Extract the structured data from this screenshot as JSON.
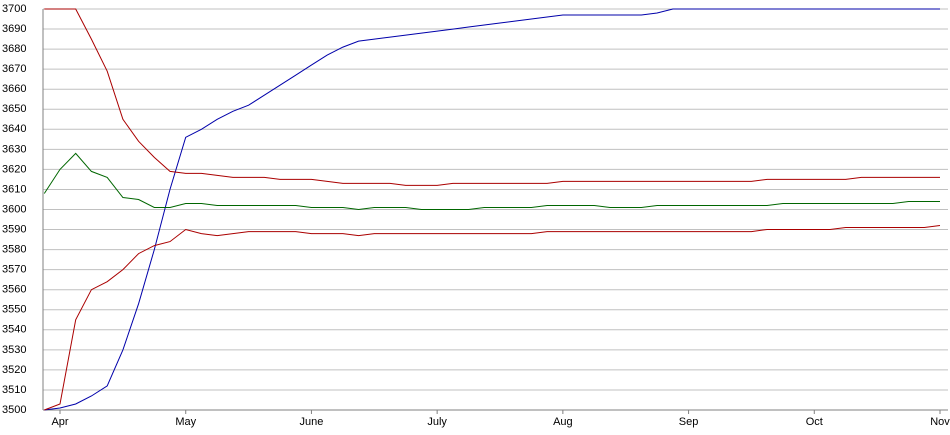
{
  "chart_data": {
    "type": "line",
    "categories": [
      null,
      "Apr",
      null,
      null,
      null,
      null,
      null,
      null,
      null,
      "May",
      null,
      null,
      null,
      null,
      null,
      null,
      null,
      "June",
      null,
      null,
      null,
      null,
      null,
      null,
      null,
      "July",
      null,
      null,
      null,
      null,
      null,
      null,
      null,
      "Aug",
      null,
      null,
      null,
      null,
      null,
      null,
      null,
      "Sep",
      null,
      null,
      null,
      null,
      null,
      null,
      null,
      "Oct",
      null,
      null,
      null,
      null,
      null,
      null,
      null,
      "Nov"
    ],
    "series": [
      {
        "color": "#0000aa",
        "values": [
          3500,
          3501,
          3503,
          3507,
          3512,
          3530,
          3553,
          3580,
          3610,
          3636,
          3640,
          3645,
          3649,
          3652,
          3657,
          3662,
          3667,
          3672,
          3677,
          3681,
          3684,
          3685,
          3686,
          3687,
          3688,
          3689,
          3690,
          3691,
          3692,
          3693,
          3694,
          3695,
          3696,
          3697,
          3697,
          3697,
          3697,
          3697,
          3697,
          3698,
          3700,
          3700,
          3700,
          3700,
          3700,
          3700,
          3700,
          3700,
          3700,
          3700,
          3700,
          3700,
          3700,
          3700,
          3700,
          3700,
          3700,
          3700
        ]
      },
      {
        "color": "#aa0000",
        "values": [
          3700,
          3700,
          3700,
          3685,
          3669,
          3645,
          3634,
          3626,
          3619,
          3618,
          3618,
          3617,
          3616,
          3616,
          3616,
          3615,
          3615,
          3615,
          3614,
          3613,
          3613,
          3613,
          3613,
          3612,
          3612,
          3612,
          3613,
          3613,
          3613,
          3613,
          3613,
          3613,
          3613,
          3614,
          3614,
          3614,
          3614,
          3614,
          3614,
          3614,
          3614,
          3614,
          3614,
          3614,
          3614,
          3614,
          3615,
          3615,
          3615,
          3615,
          3615,
          3615,
          3616,
          3616,
          3616,
          3616,
          3616,
          3616
        ]
      },
      {
        "color": "#006600",
        "values": [
          3608,
          3620,
          3628,
          3619,
          3616,
          3606,
          3605,
          3601,
          3601,
          3603,
          3603,
          3602,
          3602,
          3602,
          3602,
          3602,
          3602,
          3601,
          3601,
          3601,
          3600,
          3601,
          3601,
          3601,
          3600,
          3600,
          3600,
          3600,
          3601,
          3601,
          3601,
          3601,
          3602,
          3602,
          3602,
          3602,
          3601,
          3601,
          3601,
          3602,
          3602,
          3602,
          3602,
          3602,
          3602,
          3602,
          3602,
          3603,
          3603,
          3603,
          3603,
          3603,
          3603,
          3603,
          3603,
          3604,
          3604,
          3604
        ]
      },
      {
        "color": "#aa0000",
        "values": [
          3500,
          3503,
          3545,
          3560,
          3564,
          3570,
          3578,
          3582,
          3584,
          3590,
          3588,
          3587,
          3588,
          3589,
          3589,
          3589,
          3589,
          3588,
          3588,
          3588,
          3587,
          3588,
          3588,
          3588,
          3588,
          3588,
          3588,
          3588,
          3588,
          3588,
          3588,
          3588,
          3589,
          3589,
          3589,
          3589,
          3589,
          3589,
          3589,
          3589,
          3589,
          3589,
          3589,
          3589,
          3589,
          3589,
          3590,
          3590,
          3590,
          3590,
          3590,
          3591,
          3591,
          3591,
          3591,
          3591,
          3591,
          3592
        ]
      }
    ],
    "ylim": [
      3500,
      3700
    ],
    "yticks": [
      3500,
      3510,
      3520,
      3530,
      3540,
      3550,
      3560,
      3570,
      3580,
      3590,
      3600,
      3610,
      3620,
      3630,
      3640,
      3650,
      3660,
      3670,
      3680,
      3690,
      3700
    ],
    "grid": true
  }
}
